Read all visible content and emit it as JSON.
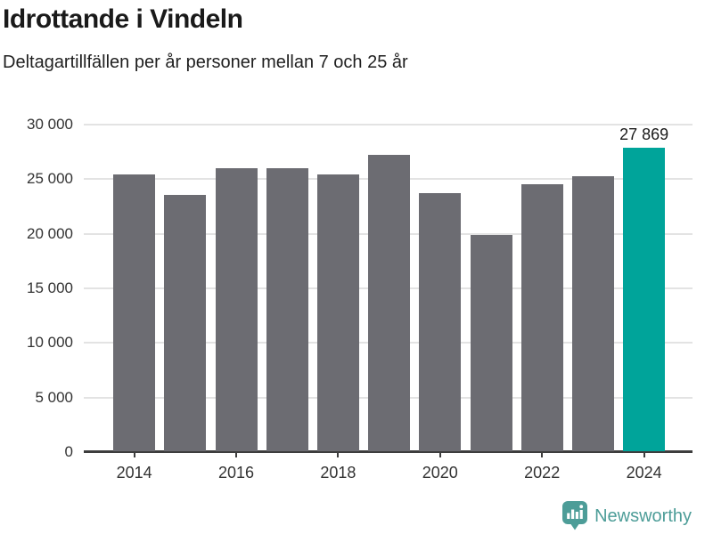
{
  "header": {
    "title": "Idrottande i Vindeln",
    "subtitle": "Deltagartillfällen per år personer mellan 7 och 25 år"
  },
  "chart_data": {
    "type": "bar",
    "categories": [
      "2014",
      "2015",
      "2016",
      "2017",
      "2018",
      "2019",
      "2020",
      "2021",
      "2022",
      "2023",
      "2024"
    ],
    "values": [
      25400,
      23600,
      26000,
      26000,
      25400,
      27200,
      23700,
      19900,
      24500,
      25300,
      27869
    ],
    "highlight_index": 10,
    "annotation": {
      "text": "27 869",
      "category": "2024",
      "value": 27869
    },
    "y_tick_values": [
      0,
      5000,
      10000,
      15000,
      20000,
      25000,
      30000
    ],
    "y_tick_labels": [
      "0",
      "5 000",
      "10 000",
      "15 000",
      "20 000",
      "25 000",
      "30 000"
    ],
    "x_tick_labels": [
      "2014",
      "2016",
      "2018",
      "2020",
      "2022",
      "2024"
    ],
    "x_tick_indices": [
      0,
      2,
      4,
      6,
      8,
      10
    ],
    "ylim": [
      0,
      30000
    ],
    "grid": true,
    "legend": "none",
    "colors": {
      "bar": "#6c6c72",
      "highlight": "#00a49a",
      "gridline": "#e3e3e3",
      "axis": "#3d3d3d",
      "tick_label": "#333333"
    }
  },
  "footer": {
    "brand": "Newsworthy",
    "brand_color": "#4d9d98",
    "logo_icon": "bar-chart-speech-bubble-icon"
  }
}
